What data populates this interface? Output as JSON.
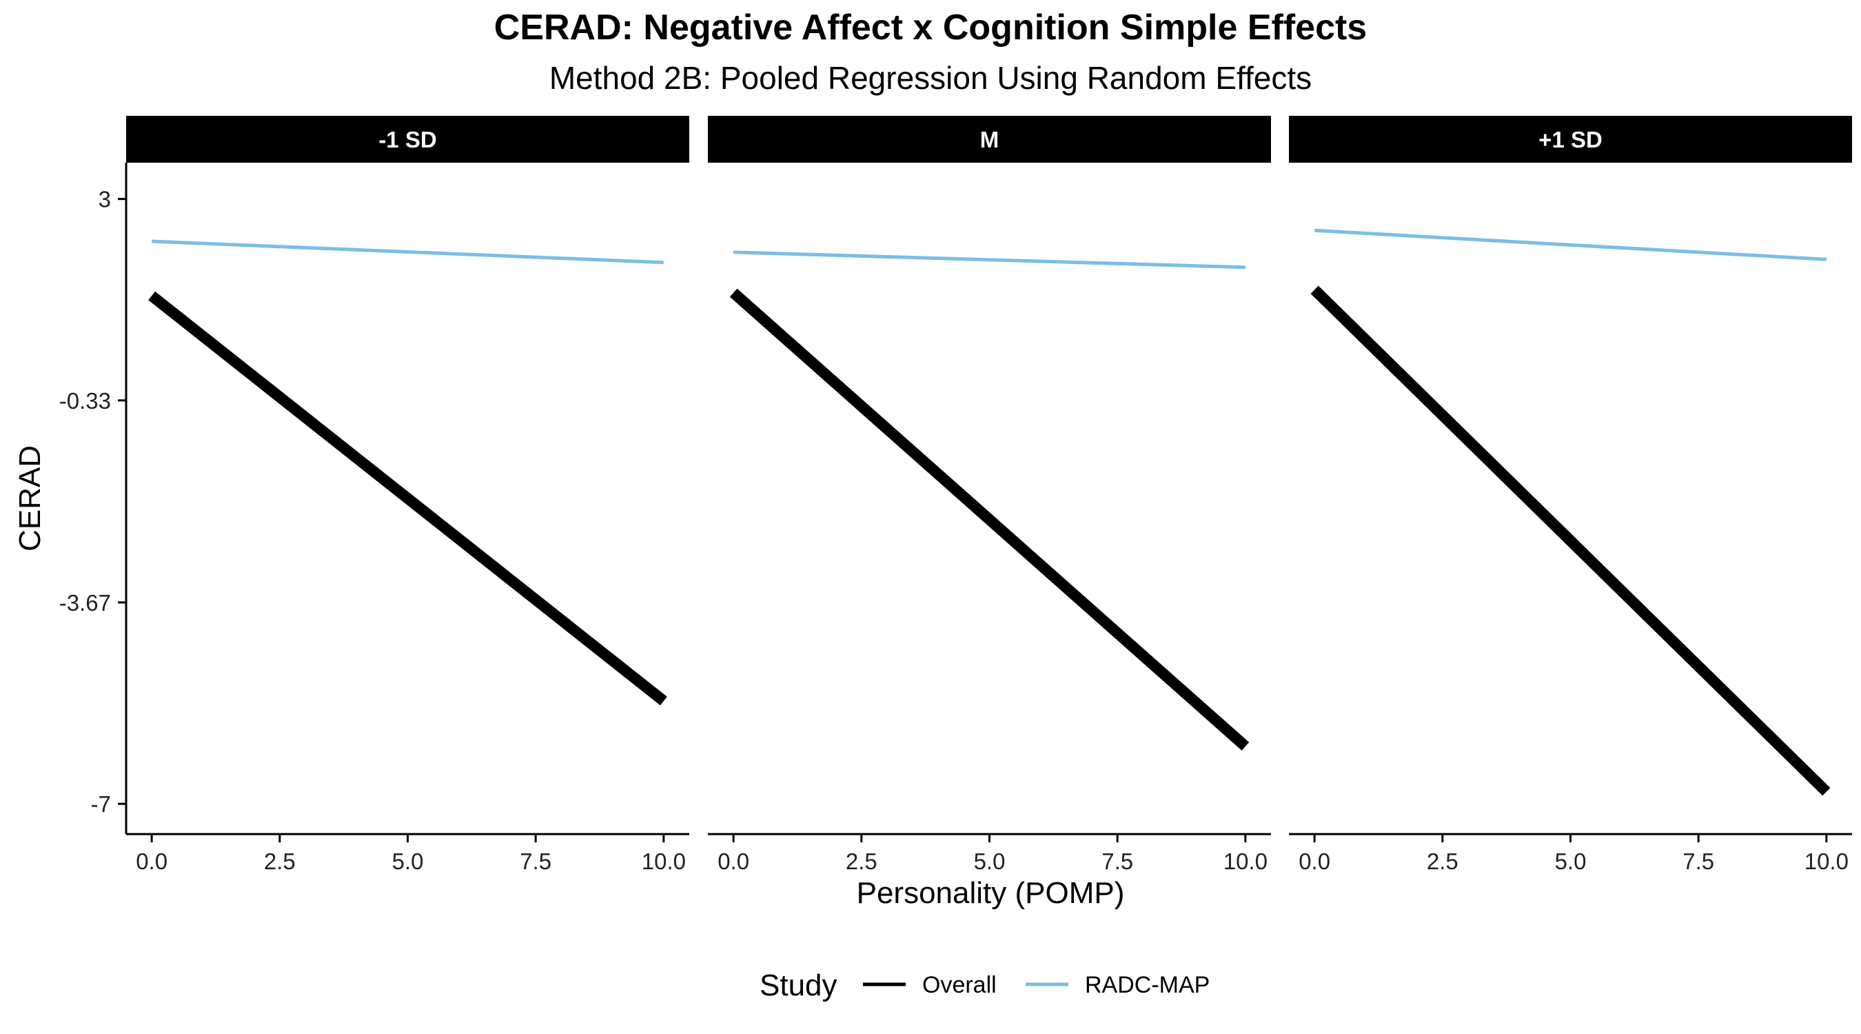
{
  "title": "CERAD: Negative Affect x Cognition Simple Effects",
  "subtitle": "Method 2B: Pooled Regression Using Random Effects",
  "legend": {
    "title": "Study",
    "position": "bottom"
  },
  "chart_data": {
    "type": "line",
    "title": "CERAD: Negative Affect x Cognition Simple Effects",
    "subtitle": "Method 2B: Pooled Regression Using Random Effects",
    "xlabel": "Personality (POMP)",
    "ylabel": "CERAD",
    "xlim": [
      -0.5,
      10.5
    ],
    "ylim": [
      -7.5,
      3.6
    ],
    "x_ticks": [
      0.0,
      2.5,
      5.0,
      7.5,
      10.0
    ],
    "x_tick_labels": [
      "0.0",
      "2.5",
      "5.0",
      "7.5",
      "10.0"
    ],
    "y_ticks": [
      3,
      -0.33,
      -3.67,
      -7
    ],
    "y_tick_labels": [
      "3",
      "-0.33",
      "-3.67",
      "-7"
    ],
    "grid": false,
    "legend_position": "bottom",
    "series_styles": [
      {
        "name": "Overall",
        "color": "#000000",
        "weight": "thick"
      },
      {
        "name": "RADC-MAP",
        "color": "#7BBDE6",
        "weight": "thin"
      }
    ],
    "panels": [
      {
        "label": "-1 SD",
        "series": [
          {
            "name": "Overall",
            "x": [
              0,
              10
            ],
            "y": [
              1.4,
              -5.3
            ]
          },
          {
            "name": "RADC-MAP",
            "x": [
              0,
              10
            ],
            "y": [
              2.3,
              1.95
            ]
          }
        ]
      },
      {
        "label": "M",
        "series": [
          {
            "name": "Overall",
            "x": [
              0,
              10
            ],
            "y": [
              1.45,
              -6.05
            ]
          },
          {
            "name": "RADC-MAP",
            "x": [
              0,
              10
            ],
            "y": [
              2.12,
              1.87
            ]
          }
        ]
      },
      {
        "label": "+1 SD",
        "series": [
          {
            "name": "Overall",
            "x": [
              0,
              10
            ],
            "y": [
              1.5,
              -6.8
            ]
          },
          {
            "name": "RADC-MAP",
            "x": [
              0,
              10
            ],
            "y": [
              2.48,
              2.0
            ]
          }
        ]
      }
    ]
  }
}
